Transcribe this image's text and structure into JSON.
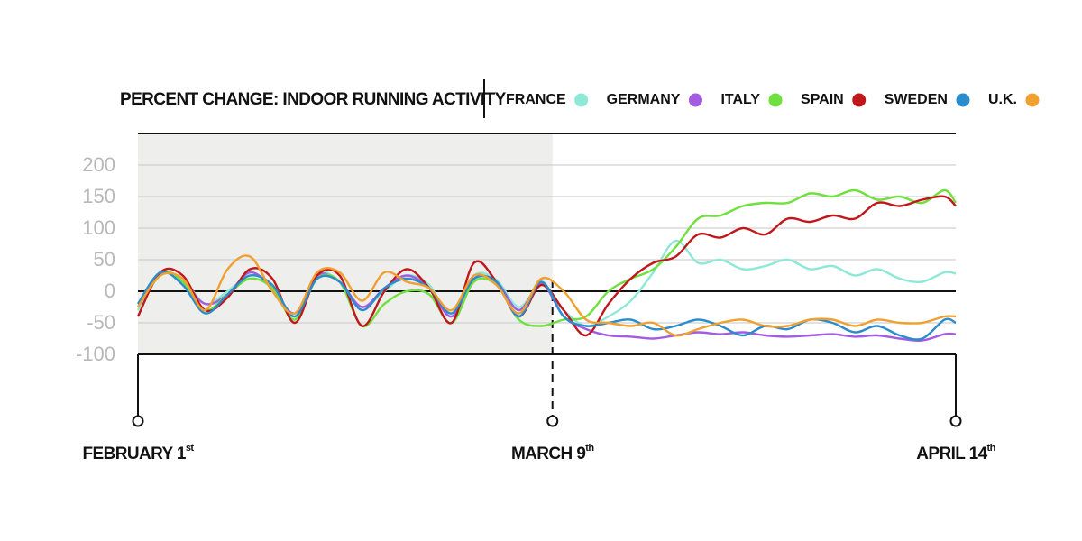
{
  "chart_data": {
    "type": "line",
    "title": "PERCENT CHANGE: INDOOR RUNNING ACTIVITY",
    "x": [
      0,
      2,
      4,
      6,
      8,
      10,
      12,
      14,
      16,
      18,
      20,
      22,
      24,
      26,
      28,
      30,
      32,
      34,
      36,
      38,
      40,
      42,
      44,
      46,
      48,
      50,
      52,
      54,
      56,
      58,
      60,
      62,
      64,
      66,
      68,
      70,
      72,
      73
    ],
    "xlim": [
      0,
      73
    ],
    "ylim": [
      -100,
      250
    ],
    "yticks": [
      -100,
      -50,
      0,
      50,
      100,
      150,
      200
    ],
    "grid": true,
    "shaded_range": [
      0,
      37
    ],
    "annotations": [
      {
        "x": 0,
        "label": "FEBRUARY 1",
        "sup": "st"
      },
      {
        "x": 37,
        "label": "MARCH 9",
        "sup": "th"
      },
      {
        "x": 73,
        "label": "APRIL 14",
        "sup": "th"
      }
    ],
    "series": [
      {
        "name": "FRANCE",
        "color": "#8de8d6",
        "values": [
          -30,
          25,
          20,
          -20,
          0,
          25,
          10,
          -40,
          28,
          15,
          -25,
          0,
          25,
          10,
          -40,
          25,
          18,
          -25,
          10,
          -30,
          -55,
          -40,
          -15,
          30,
          80,
          45,
          50,
          35,
          40,
          50,
          35,
          40,
          25,
          35,
          20,
          15,
          30,
          28
        ]
      },
      {
        "name": "GERMANY",
        "color": "#a35be0",
        "values": [
          -20,
          28,
          15,
          -20,
          -5,
          30,
          5,
          -35,
          25,
          15,
          -25,
          5,
          25,
          5,
          -40,
          20,
          15,
          -30,
          12,
          -40,
          -60,
          -70,
          -72,
          -75,
          -70,
          -65,
          -68,
          -65,
          -70,
          -72,
          -70,
          -68,
          -72,
          -70,
          -75,
          -78,
          -68,
          -68
        ]
      },
      {
        "name": "ITALY",
        "color": "#6fe03e",
        "values": [
          -25,
          30,
          15,
          -30,
          -5,
          20,
          5,
          -45,
          20,
          15,
          -55,
          -20,
          0,
          -5,
          -50,
          15,
          10,
          -45,
          -55,
          -45,
          -40,
          0,
          20,
          35,
          70,
          115,
          120,
          135,
          140,
          140,
          155,
          150,
          160,
          145,
          150,
          140,
          160,
          140
        ]
      },
      {
        "name": "SPAIN",
        "color": "#c0171b",
        "values": [
          -40,
          30,
          25,
          -30,
          -10,
          35,
          20,
          -50,
          25,
          25,
          -55,
          0,
          35,
          5,
          -50,
          45,
          15,
          -40,
          10,
          -30,
          -70,
          -20,
          20,
          45,
          55,
          90,
          85,
          100,
          90,
          115,
          110,
          120,
          115,
          140,
          135,
          145,
          150,
          135
        ]
      },
      {
        "name": "SWEDEN",
        "color": "#2a8ccc",
        "values": [
          -20,
          30,
          10,
          -35,
          -5,
          25,
          10,
          -40,
          20,
          15,
          -30,
          5,
          20,
          5,
          -35,
          20,
          15,
          -40,
          15,
          -40,
          -55,
          -50,
          -45,
          -60,
          -55,
          -45,
          -55,
          -70,
          -55,
          -60,
          -45,
          -50,
          -65,
          -55,
          -70,
          -75,
          -45,
          -50
        ]
      },
      {
        "name": "U.K.",
        "color": "#f0a030",
        "values": [
          -25,
          25,
          20,
          -30,
          35,
          55,
          0,
          -35,
          30,
          30,
          -15,
          30,
          15,
          5,
          -30,
          25,
          10,
          -35,
          20,
          0,
          -45,
          -50,
          -55,
          -50,
          -70,
          -60,
          -50,
          -45,
          -55,
          -55,
          -45,
          -45,
          -55,
          -45,
          -50,
          -50,
          -40,
          -40
        ]
      }
    ]
  }
}
